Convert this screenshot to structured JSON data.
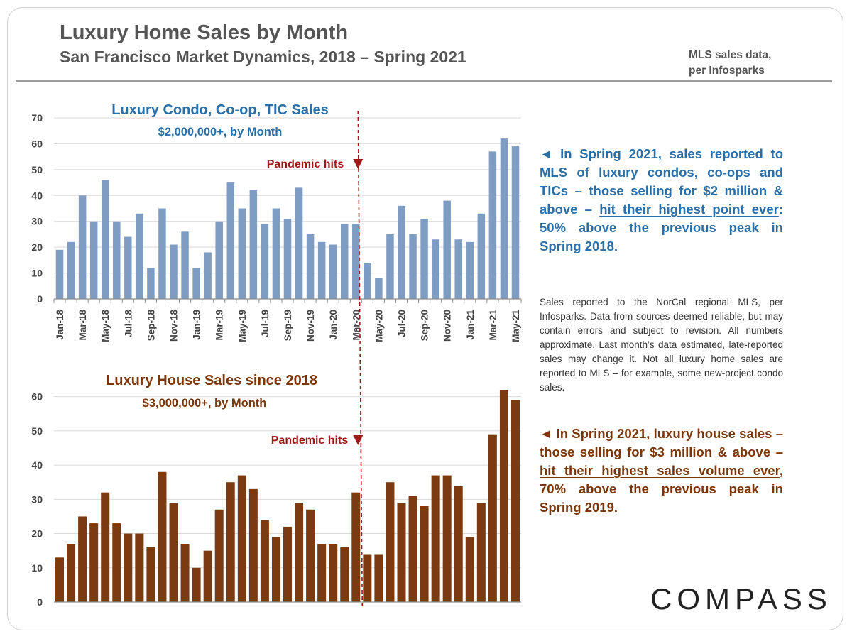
{
  "header": {
    "title": "Luxury Home Sales by Month",
    "subtitle": "San Francisco Market Dynamics, 2018 – Spring 2021",
    "source_line1": "MLS sales data,",
    "source_line2": "per Infosparks"
  },
  "callouts": {
    "condo_pre": "◄ In Spring 2021, sales reported to MLS of luxury condos, co-ops and TICs – those selling for $2 million & above – ",
    "condo_underline": "hit their highest point ever",
    "condo_post": ":  50% above the previous peak in Spring 2018.",
    "house_pre": "◄ In Spring 2021, luxury house sales – those selling for $3 million & above – ",
    "house_underline": "hit their highest sales volume ever",
    "house_post": ", 70% above the previous peak in Spring 2019."
  },
  "disclaimer": "Sales reported to the NorCal regional MLS, per Infosparks. Data from sources deemed reliable, but may contain errors and subject to revision. All numbers approximate. Last month’s data estimated, late-reported sales may change it. Not all luxury home sales are reported to MLS – for example, some new-project condo sales.",
  "logo": "COMPASS",
  "colors": {
    "condo_bar": "#7f9dc2",
    "house_bar": "#7b3a0f",
    "condo_title": "#2a6fa8",
    "house_title": "#7a3508",
    "pandemic": "#a01818"
  },
  "chart_data": [
    {
      "type": "bar",
      "title": "Luxury Condo, Co-op, TIC Sales",
      "subtitle": "$2,000,000+, by Month",
      "annotation": "Pandemic hits",
      "annotation_after_category": "Mar-20",
      "xlabel": "",
      "ylabel": "",
      "ylim": [
        0,
        70
      ],
      "yticks": [
        0,
        10,
        20,
        30,
        40,
        50,
        60,
        70
      ],
      "grid": true,
      "categories": [
        "Jan-18",
        "Feb-18",
        "Mar-18",
        "Apr-18",
        "May-18",
        "Jun-18",
        "Jul-18",
        "Aug-18",
        "Sep-18",
        "Oct-18",
        "Nov-18",
        "Dec-18",
        "Jan-19",
        "Feb-19",
        "Mar-19",
        "Apr-19",
        "May-19",
        "Jun-19",
        "Jul-19",
        "Aug-19",
        "Sep-19",
        "Oct-19",
        "Nov-19",
        "Dec-19",
        "Jan-20",
        "Feb-20",
        "Mar-20",
        "Apr-20",
        "May-20",
        "Jun-20",
        "Jul-20",
        "Aug-20",
        "Sep-20",
        "Oct-20",
        "Nov-20",
        "Dec-20",
        "Jan-21",
        "Feb-21",
        "Mar-21",
        "Apr-21",
        "May-21"
      ],
      "tick_labels": [
        "Jan-18",
        "Mar-18",
        "May-18",
        "Jul-18",
        "Sep-18",
        "Nov-18",
        "Jan-19",
        "Mar-19",
        "May-19",
        "Jul-19",
        "Sep-19",
        "Nov-19",
        "Jan-20",
        "Mar-20",
        "May-20",
        "Jul-20",
        "Sep-20",
        "Nov-20",
        "Jan-21",
        "Mar-21",
        "May-21"
      ],
      "values": [
        19,
        22,
        40,
        30,
        46,
        30,
        24,
        33,
        12,
        35,
        21,
        26,
        12,
        18,
        30,
        45,
        35,
        42,
        29,
        35,
        31,
        43,
        25,
        22,
        21,
        29,
        29,
        14,
        8,
        25,
        36,
        25,
        31,
        23,
        38,
        23,
        22,
        33,
        57,
        62,
        59
      ]
    },
    {
      "type": "bar",
      "title": "Luxury House Sales since 2018",
      "subtitle": "$3,000,000+, by Month",
      "annotation": "Pandemic hits",
      "annotation_after_category": "Mar-20",
      "xlabel": "",
      "ylabel": "",
      "ylim": [
        0,
        62
      ],
      "yticks": [
        0,
        10,
        20,
        30,
        40,
        50,
        60
      ],
      "grid": true,
      "categories": [
        "Jan-18",
        "Feb-18",
        "Mar-18",
        "Apr-18",
        "May-18",
        "Jun-18",
        "Jul-18",
        "Aug-18",
        "Sep-18",
        "Oct-18",
        "Nov-18",
        "Dec-18",
        "Jan-19",
        "Feb-19",
        "Mar-19",
        "Apr-19",
        "May-19",
        "Jun-19",
        "Jul-19",
        "Aug-19",
        "Sep-19",
        "Oct-19",
        "Nov-19",
        "Dec-19",
        "Jan-20",
        "Feb-20",
        "Mar-20",
        "Apr-20",
        "May-20",
        "Jun-20",
        "Jul-20",
        "Aug-20",
        "Sep-20",
        "Oct-20",
        "Nov-20",
        "Dec-20",
        "Jan-21",
        "Feb-21",
        "Mar-21",
        "Apr-21",
        "May-21"
      ],
      "values": [
        13,
        17,
        25,
        23,
        32,
        23,
        20,
        20,
        16,
        38,
        29,
        17,
        10,
        15,
        27,
        35,
        37,
        33,
        24,
        19,
        22,
        29,
        27,
        17,
        17,
        16,
        32,
        14,
        14,
        35,
        29,
        31,
        28,
        37,
        37,
        34,
        19,
        29,
        49,
        62,
        59
      ]
    }
  ]
}
